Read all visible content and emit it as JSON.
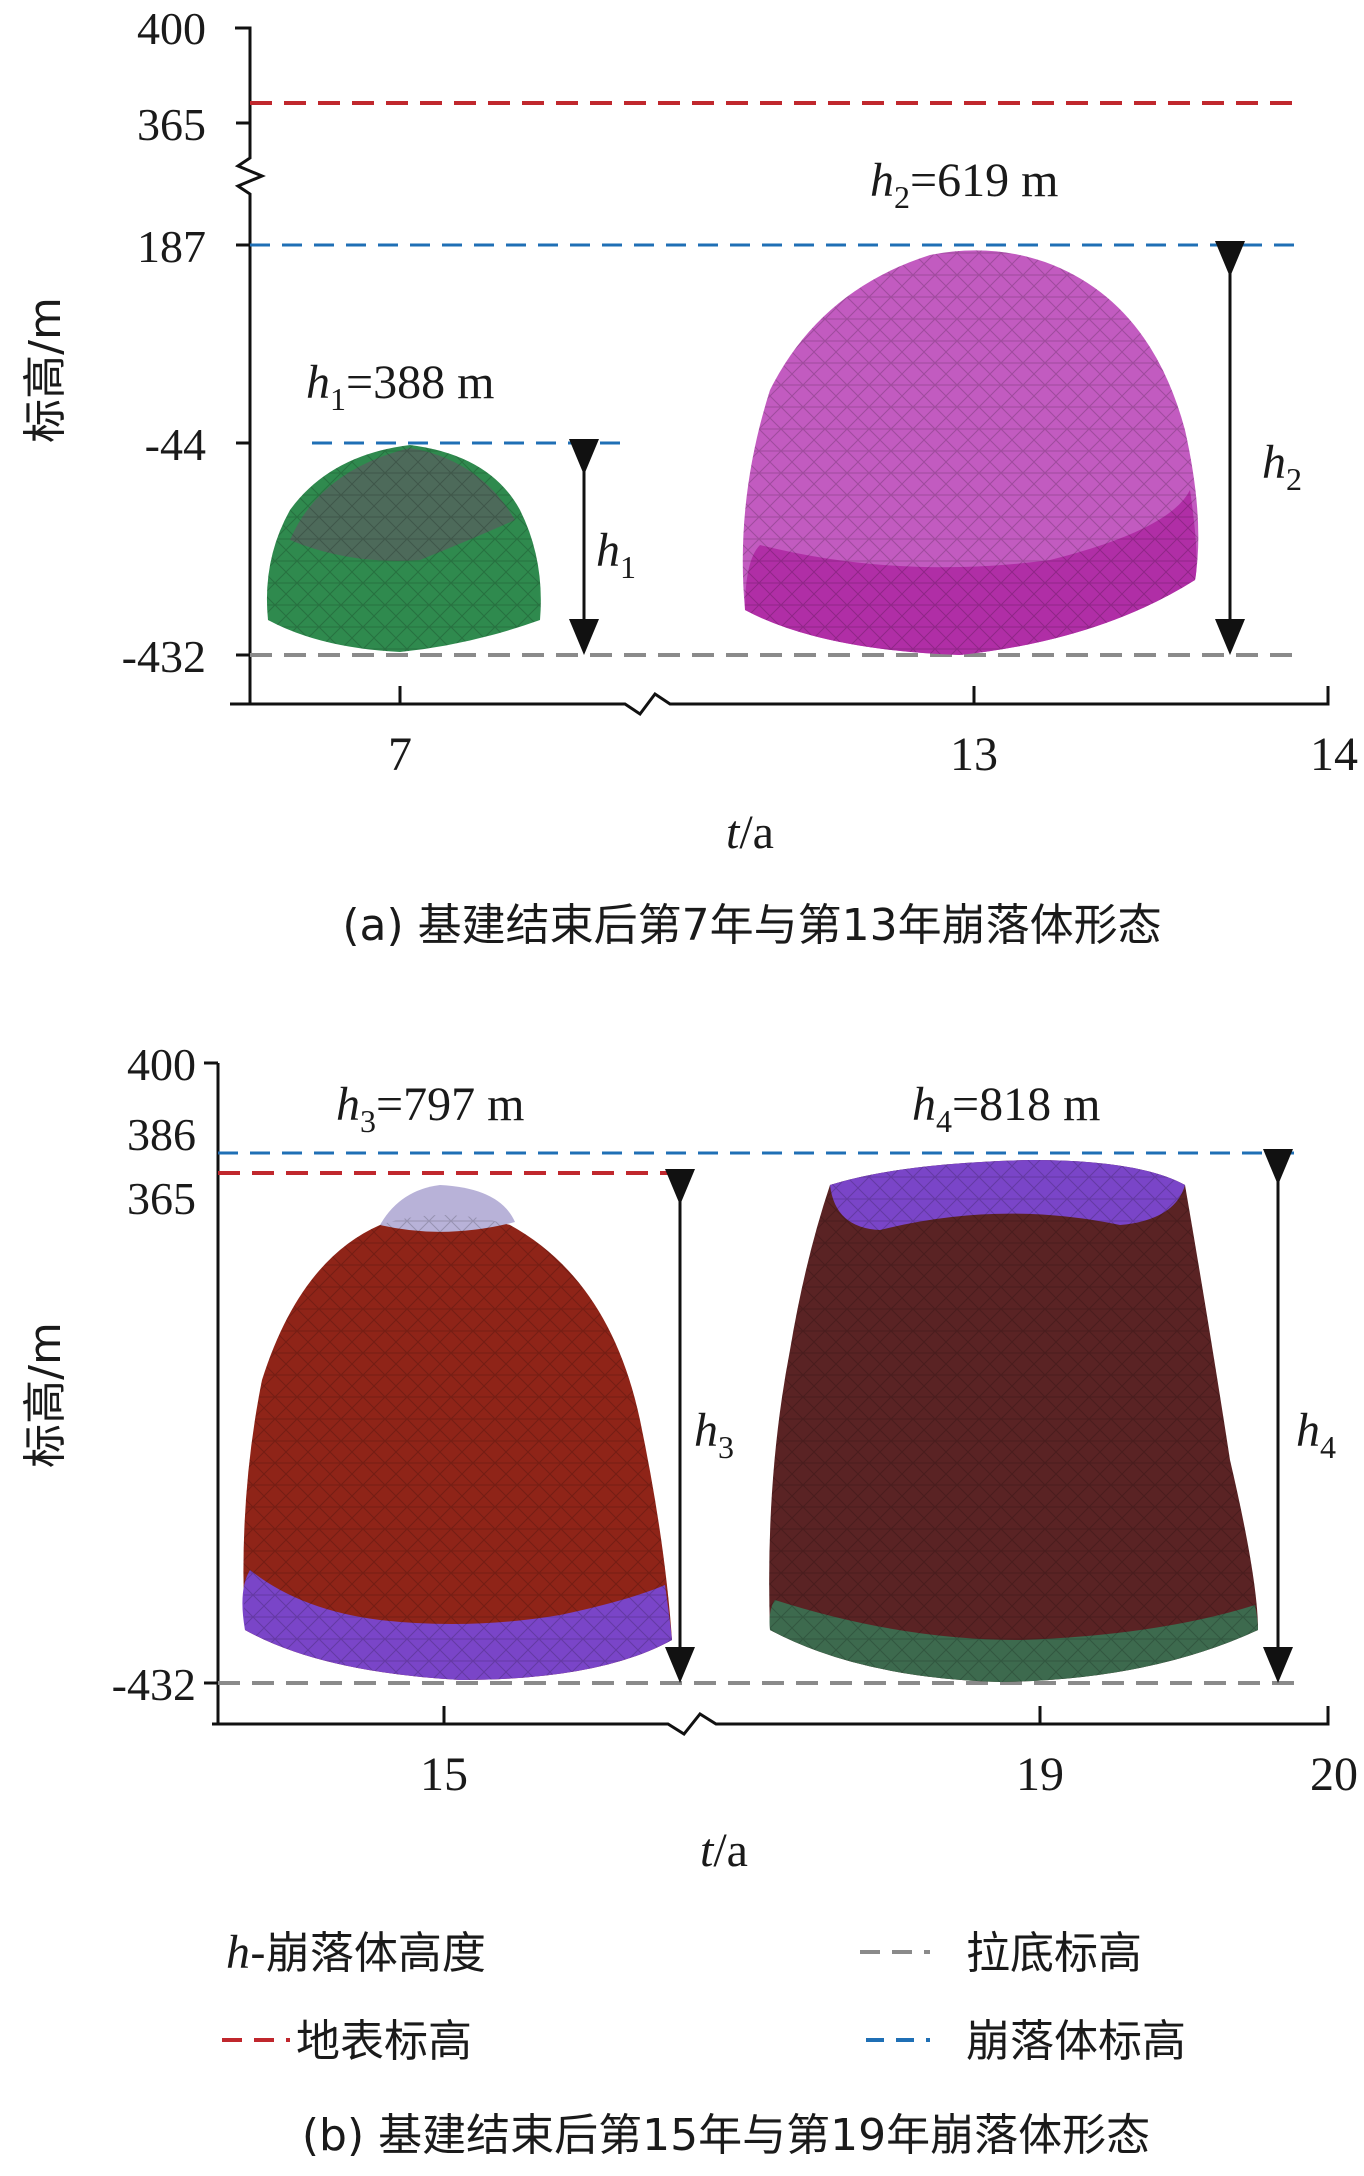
{
  "panel_a": {
    "y_axis_label": "标高/m",
    "y_ticks": [
      "400",
      "365",
      "187",
      "-44",
      "-432"
    ],
    "x_axis_label_italic": "t",
    "x_axis_label_rest": "/a",
    "x_ticks": [
      "7",
      "13",
      "14"
    ],
    "annotations": {
      "h1_label_top": {
        "var": "h",
        "sub": "1",
        "rest": "=388 m"
      },
      "h2_label_top": {
        "var": "h",
        "sub": "2",
        "rest": "=619 m"
      },
      "h1_label_side": {
        "var": "h",
        "sub": "1"
      },
      "h2_label_side": {
        "var": "h",
        "sub": "2"
      }
    },
    "caption": "(a) 基建结束后第7年与第13年崩落体形态"
  },
  "panel_b": {
    "y_axis_label": "标高/m",
    "y_ticks": [
      "400",
      "386",
      "365",
      "-432"
    ],
    "x_axis_label_italic": "t",
    "x_axis_label_rest": "/a",
    "x_ticks": [
      "15",
      "19",
      "20"
    ],
    "annotations": {
      "h3_label_top": {
        "var": "h",
        "sub": "3",
        "rest": "=797 m"
      },
      "h4_label_top": {
        "var": "h",
        "sub": "4",
        "rest": "=818 m"
      },
      "h3_label_side": {
        "var": "h",
        "sub": "3"
      },
      "h4_label_side": {
        "var": "h",
        "sub": "4"
      }
    },
    "caption": "(b) 基建结束后第15年与第19年崩落体形态"
  },
  "legend": {
    "height_italic": "h",
    "height_rest": "-崩落体高度",
    "undercut": "拉底标高",
    "surface": "地表标高",
    "cave": "崩落体标高"
  },
  "colors": {
    "surface_line": "#c0272d",
    "cave_line": "#1f6fb5",
    "undercut_line": "#8a8a8a",
    "body_green": "#2f8a4e",
    "body_magenta": "#c25bc0",
    "body_red": "#8f2418",
    "body_brown": "#5a2324",
    "accent_purple": "#7a45c8"
  }
}
